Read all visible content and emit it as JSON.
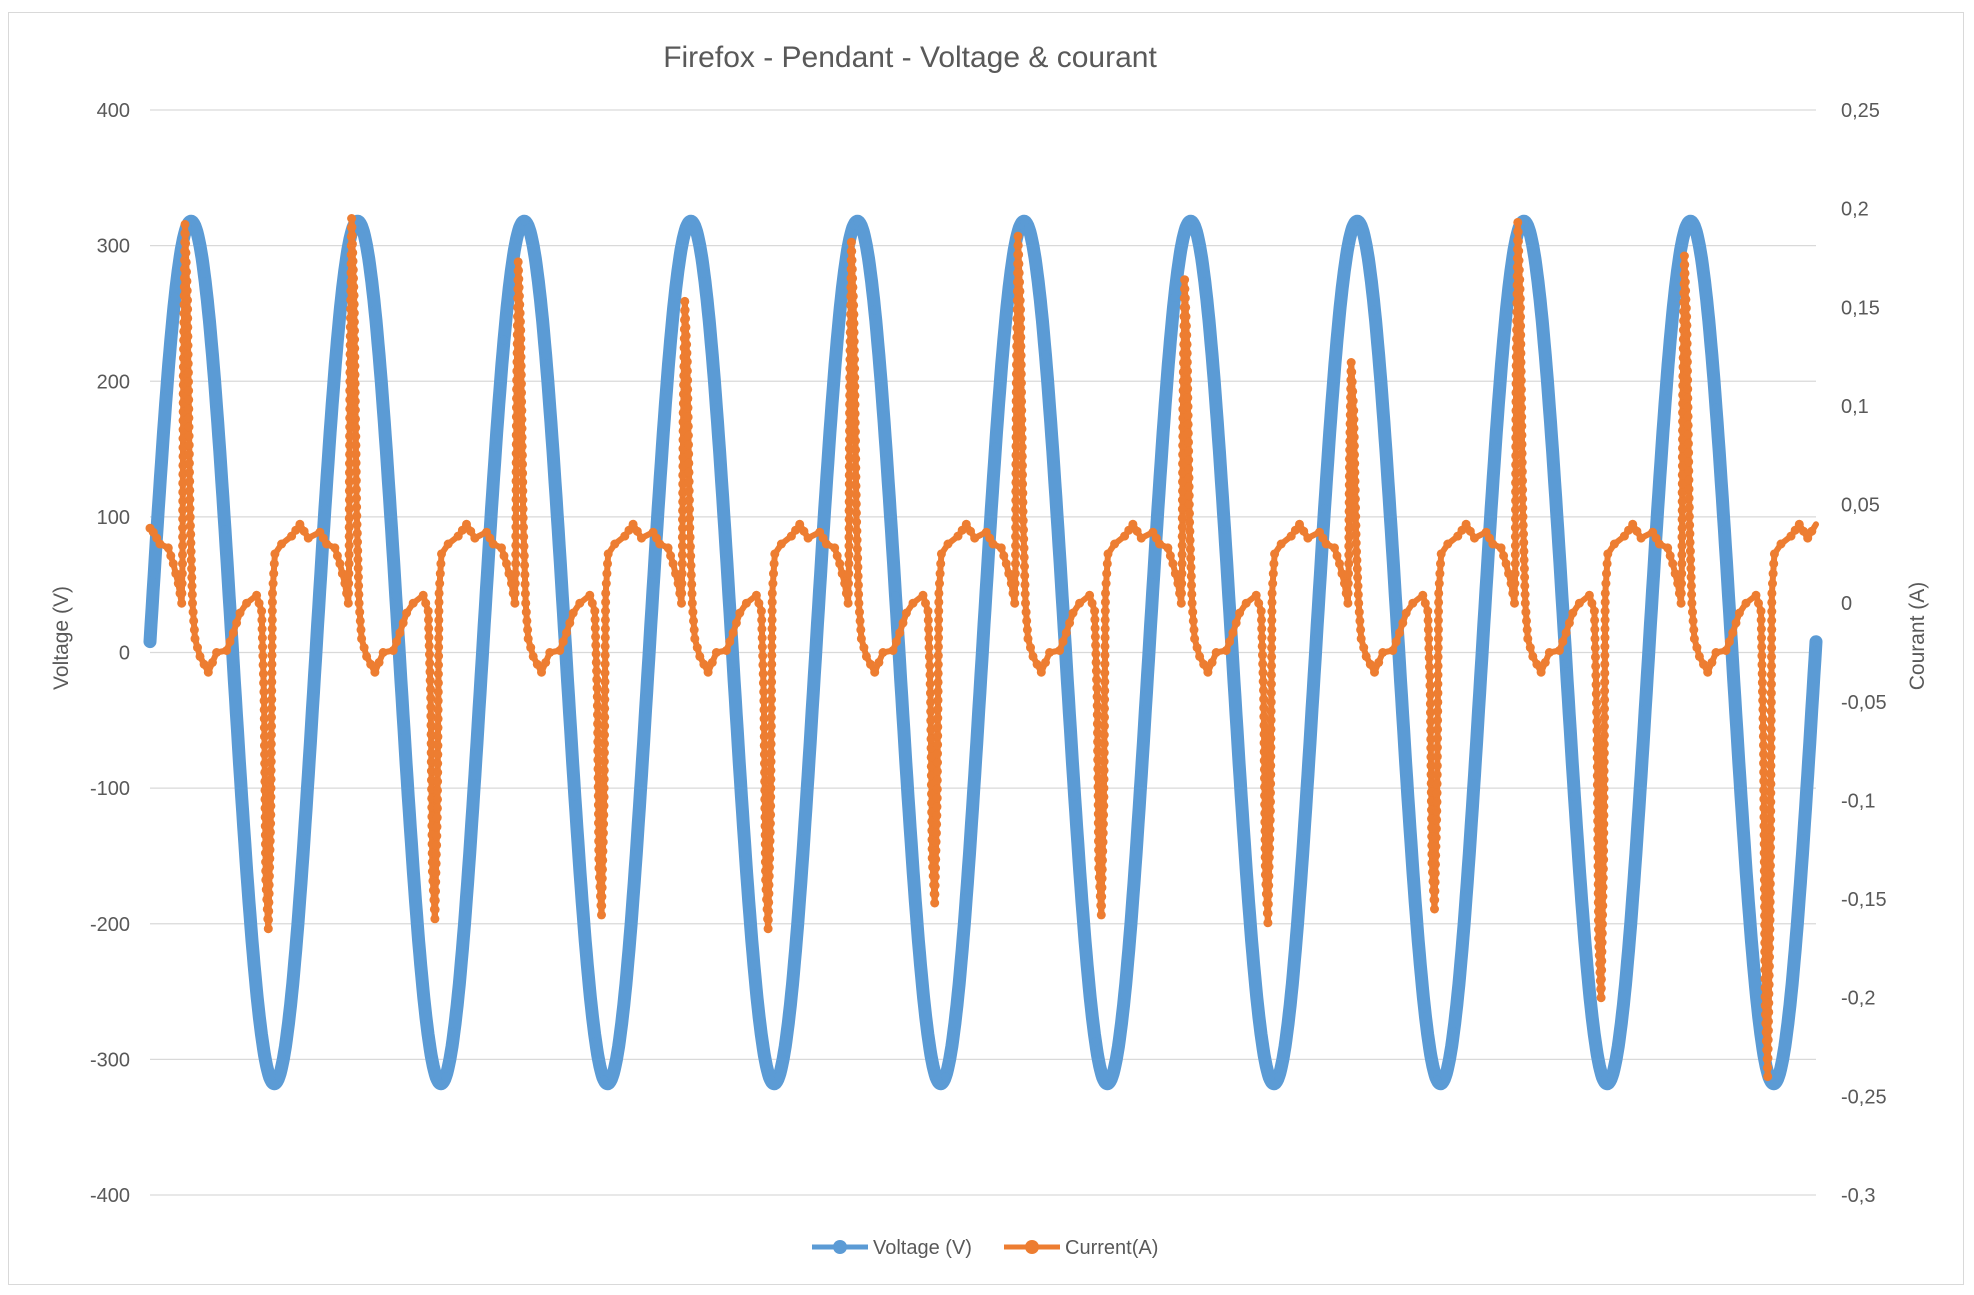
{
  "chart_data": {
    "type": "line",
    "title": "Firefox - Pendant - Voltage & courant",
    "y_left": {
      "label": "Voltage (V)",
      "range": [
        -400,
        400
      ],
      "ticks": [
        "400",
        "300",
        "200",
        "100",
        "0",
        "-100",
        "-200",
        "-300",
        "-400"
      ],
      "tick_values": [
        400,
        300,
        200,
        100,
        0,
        -100,
        -200,
        -300,
        -400
      ]
    },
    "y_right": {
      "label": "Courant (A)",
      "range": [
        -0.3,
        0.25
      ],
      "ticks": [
        "0,25",
        "0,2",
        "0,15",
        "0,1",
        "0,05",
        "0",
        "-0,05",
        "-0,1",
        "-0,15",
        "-0,2",
        "-0,25",
        "-0,3"
      ],
      "tick_values": [
        0.25,
        0.2,
        0.15,
        0.1,
        0.05,
        0,
        -0.05,
        -0.1,
        -0.15,
        -0.2,
        -0.25,
        -0.3
      ]
    },
    "grid": true,
    "legend_position": "bottom",
    "series": [
      {
        "name": "Voltage (V)",
        "axis": "left",
        "color": "#5b9bd5",
        "waveform": "sine",
        "amplitude": 318,
        "cycles": 10,
        "start_value": 8,
        "end_value": 0
      },
      {
        "name": "Current(A)",
        "axis": "right",
        "color": "#ed7d31",
        "cycles": 10,
        "positive_peaks": [
          0.192,
          0.195,
          0.173,
          0.153,
          0.183,
          0.186,
          0.164,
          0.122,
          0.193,
          0.176
        ],
        "negative_peaks": [
          -0.165,
          -0.16,
          -0.158,
          -0.165,
          -0.152,
          -0.158,
          -0.162,
          -0.155,
          -0.2,
          -0.24
        ],
        "plateau_high": 0.03,
        "plateau_low": -0.027,
        "start_value": 0.038,
        "end_value": 0.04
      }
    ]
  }
}
